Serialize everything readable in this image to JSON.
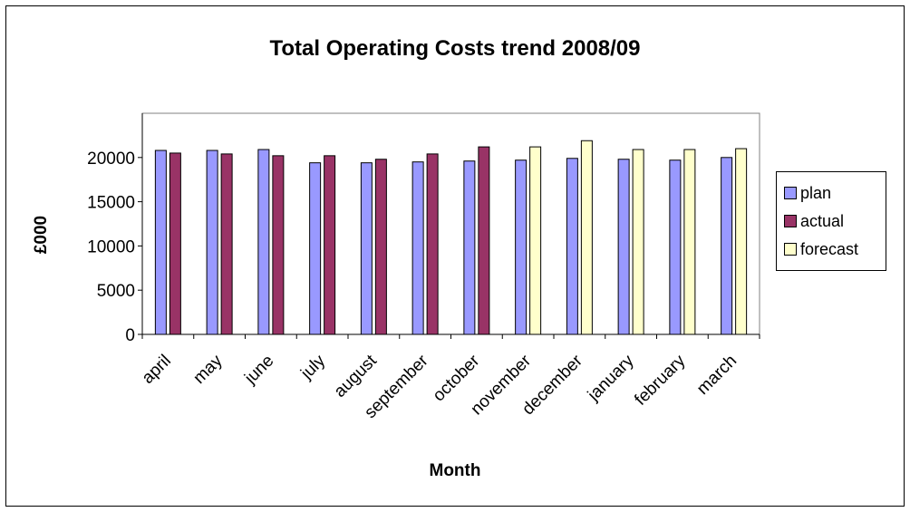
{
  "chart_data": {
    "type": "bar",
    "title": "Total Operating Costs trend 2008/09",
    "xlabel": "Month",
    "ylabel": "£000",
    "ylim": [
      0,
      25000
    ],
    "yticks": [
      "0",
      "5000",
      "10000",
      "15000",
      "20000"
    ],
    "categories": [
      "april",
      "may",
      "june",
      "july",
      "august",
      "september",
      "october",
      "november",
      "december",
      "january",
      "february",
      "march"
    ],
    "series": [
      {
        "name": "plan",
        "color": "#9999ff",
        "values": [
          20800,
          20800,
          20900,
          19400,
          19400,
          19500,
          19600,
          19700,
          19900,
          19800,
          19700,
          20000
        ]
      },
      {
        "name": "actual",
        "color": "#993366",
        "values": [
          20500,
          20400,
          20200,
          20200,
          19800,
          20400,
          21200,
          null,
          null,
          null,
          null,
          null
        ]
      },
      {
        "name": "forecast",
        "color": "#ffffcc",
        "values": [
          null,
          null,
          null,
          null,
          null,
          null,
          null,
          21200,
          21900,
          20900,
          20900,
          21000
        ]
      }
    ],
    "grid": false,
    "legend": "right"
  }
}
